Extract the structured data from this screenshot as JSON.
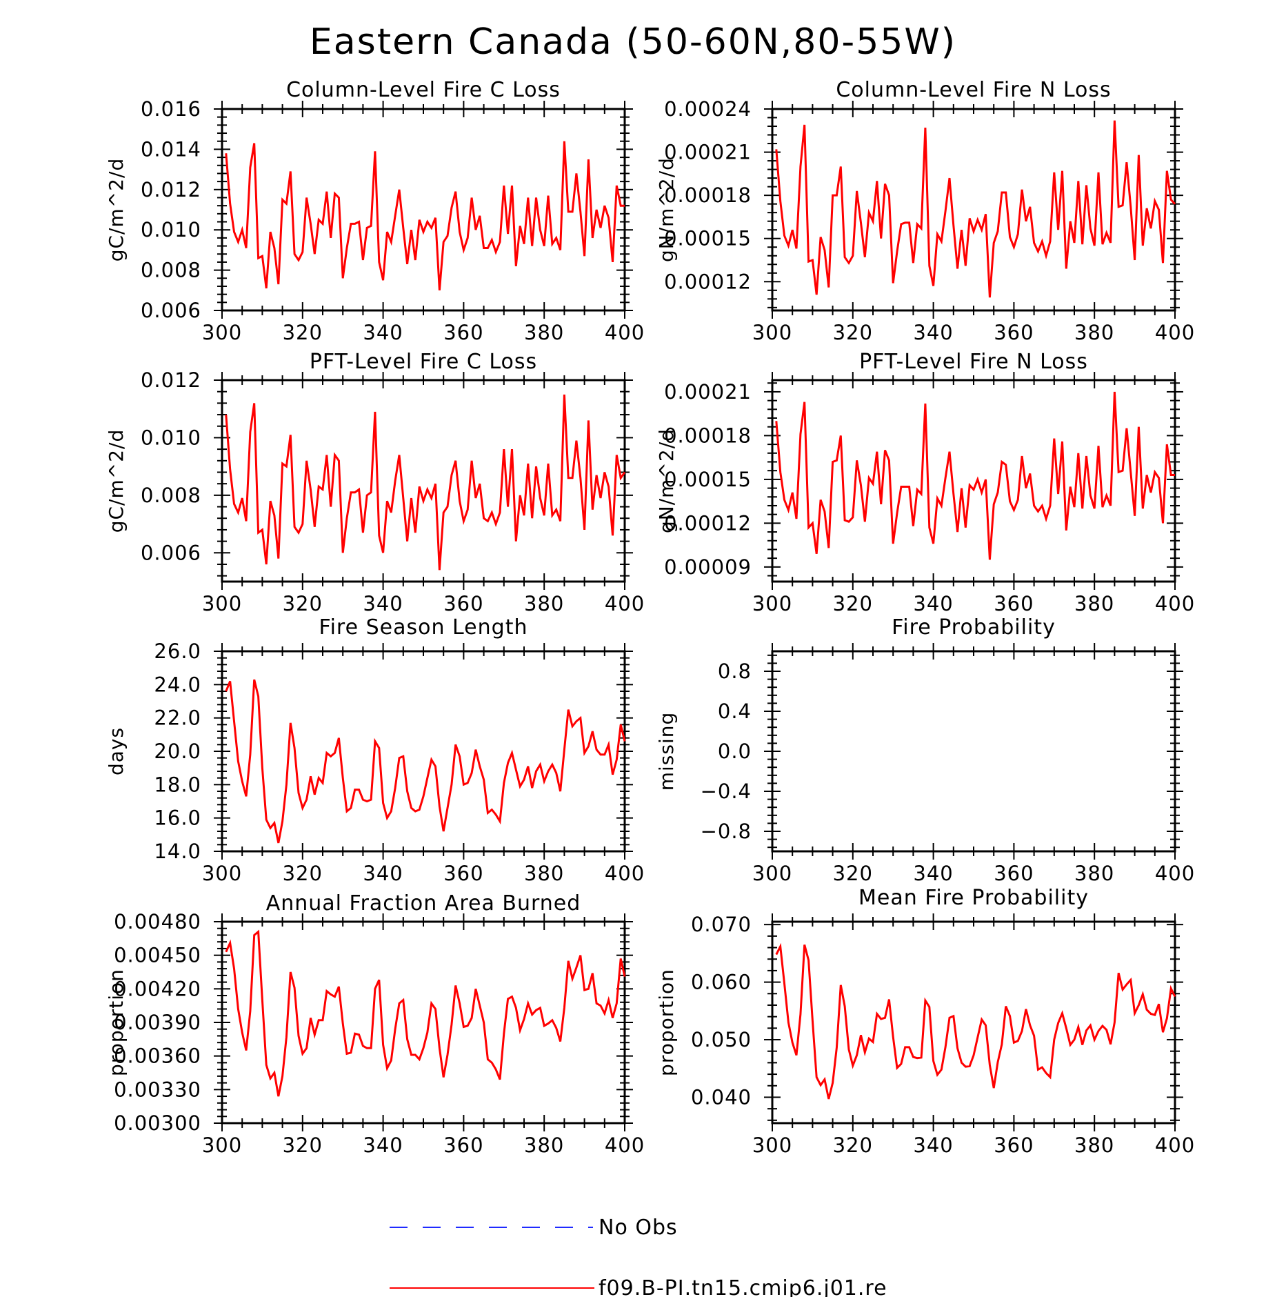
{
  "figure": {
    "title": "Eastern Canada (50-60N,80-55W)",
    "legend": [
      {
        "label": "No Obs",
        "color": "#1f2bff",
        "dash": "dashed"
      },
      {
        "label": "f09.B-PI.tn15.cmip6.j01.re",
        "color": "#ff0000",
        "dash": "solid"
      }
    ]
  },
  "chart_data": [
    {
      "type": "line",
      "title": "Column-Level Fire C Loss",
      "ylabel": "gC/m^2/d",
      "xlabel": "",
      "xlim": [
        300,
        400
      ],
      "ylim": [
        0.006,
        0.016
      ],
      "xticks": [
        "300",
        "320",
        "340",
        "360",
        "380",
        "400"
      ],
      "yticks": [
        "0.006",
        "0.008",
        "0.010",
        "0.012",
        "0.014",
        "0.016"
      ],
      "x_start": 301,
      "color": "#ff0000",
      "values": [
        0.0138,
        0.0113,
        0.0099,
        0.0094,
        0.01,
        0.0091,
        0.0131,
        0.0143,
        0.0086,
        0.0087,
        0.0071,
        0.0099,
        0.0091,
        0.0073,
        0.0115,
        0.0113,
        0.0129,
        0.0088,
        0.0085,
        0.0089,
        0.0116,
        0.0103,
        0.0088,
        0.0105,
        0.0103,
        0.0119,
        0.0096,
        0.0118,
        0.0116,
        0.0076,
        0.0091,
        0.0103,
        0.0103,
        0.0104,
        0.0085,
        0.0101,
        0.0102,
        0.0139,
        0.0084,
        0.0075,
        0.0099,
        0.0094,
        0.0107,
        0.012,
        0.0101,
        0.0083,
        0.01,
        0.0085,
        0.0105,
        0.0099,
        0.0104,
        0.0101,
        0.0106,
        0.007,
        0.0094,
        0.0097,
        0.0111,
        0.0119,
        0.0099,
        0.009,
        0.0096,
        0.0116,
        0.01,
        0.0107,
        0.0091,
        0.0091,
        0.0095,
        0.0089,
        0.0094,
        0.0122,
        0.0098,
        0.0122,
        0.0082,
        0.0102,
        0.0093,
        0.0116,
        0.0092,
        0.0116,
        0.01,
        0.0092,
        0.0117,
        0.0093,
        0.0096,
        0.009,
        0.0144,
        0.0109,
        0.0109,
        0.0128,
        0.0109,
        0.0087,
        0.0135,
        0.0096,
        0.011,
        0.0101,
        0.0112,
        0.0106,
        0.0084,
        0.0122,
        0.0112,
        0.0112
      ]
    },
    {
      "type": "line",
      "title": "Column-Level Fire N Loss",
      "ylabel": "gN/m^2/d",
      "xlabel": "",
      "xlim": [
        300,
        400
      ],
      "ylim": [
        0.0001,
        0.00024
      ],
      "xticks": [
        "300",
        "320",
        "340",
        "360",
        "380",
        "400"
      ],
      "yticks": [
        "0.00012",
        "0.00015",
        "0.00018",
        "0.00021",
        "0.00024"
      ],
      "x_start": 301,
      "color": "#ff0000",
      "values": [
        0.000212,
        0.000176,
        0.000152,
        0.000145,
        0.000156,
        0.000143,
        0.0002,
        0.000229,
        0.000134,
        0.000135,
        0.000111,
        0.000151,
        0.000142,
        0.000116,
        0.00018,
        0.00018,
        0.0002,
        0.000137,
        0.000133,
        0.000138,
        0.000183,
        0.000161,
        0.000137,
        0.000168,
        0.000162,
        0.00019,
        0.00015,
        0.000188,
        0.00018,
        0.000119,
        0.000141,
        0.00016,
        0.000161,
        0.000161,
        0.000133,
        0.00016,
        0.000157,
        0.000227,
        0.000131,
        0.000117,
        0.000153,
        0.000148,
        0.000169,
        0.000192,
        0.000159,
        0.000129,
        0.000156,
        0.000131,
        0.000164,
        0.000155,
        0.000163,
        0.000156,
        0.000167,
        0.000109,
        0.000147,
        0.000155,
        0.000182,
        0.000182,
        0.000151,
        0.000144,
        0.000153,
        0.000184,
        0.000162,
        0.000172,
        0.000147,
        0.000141,
        0.000148,
        0.000138,
        0.000148,
        0.000196,
        0.000156,
        0.000197,
        0.000129,
        0.000162,
        0.000147,
        0.00019,
        0.000146,
        0.000187,
        0.000157,
        0.000145,
        0.000196,
        0.000146,
        0.000154,
        0.000147,
        0.000232,
        0.000172,
        0.000173,
        0.000203,
        0.000172,
        0.000135,
        0.000208,
        0.000145,
        0.000171,
        0.000157,
        0.000176,
        0.00017,
        0.000133,
        0.000197,
        0.000177,
        0.000174
      ]
    },
    {
      "type": "line",
      "title": "PFT-Level Fire C Loss",
      "ylabel": "gC/m^2/d",
      "xlabel": "",
      "xlim": [
        300,
        400
      ],
      "ylim": [
        0.005,
        0.012
      ],
      "xticks": [
        "300",
        "320",
        "340",
        "360",
        "380",
        "400"
      ],
      "yticks": [
        "0.006",
        "0.008",
        "0.010",
        "0.012"
      ],
      "x_start": 301,
      "color": "#ff0000",
      "values": [
        0.0108,
        0.0089,
        0.0077,
        0.0074,
        0.0079,
        0.0071,
        0.0102,
        0.0112,
        0.0067,
        0.0068,
        0.0056,
        0.0078,
        0.0073,
        0.0058,
        0.0091,
        0.009,
        0.0101,
        0.0069,
        0.0067,
        0.007,
        0.0092,
        0.0082,
        0.0069,
        0.0083,
        0.0082,
        0.0094,
        0.0076,
        0.0094,
        0.0092,
        0.006,
        0.0072,
        0.0081,
        0.0081,
        0.0082,
        0.0067,
        0.008,
        0.0081,
        0.0109,
        0.0066,
        0.006,
        0.0078,
        0.0074,
        0.0085,
        0.0094,
        0.0079,
        0.0064,
        0.0079,
        0.0067,
        0.0083,
        0.0078,
        0.0082,
        0.0079,
        0.0084,
        0.0054,
        0.0074,
        0.0076,
        0.0087,
        0.0092,
        0.0078,
        0.0071,
        0.0075,
        0.0092,
        0.0079,
        0.0084,
        0.0072,
        0.0071,
        0.0074,
        0.007,
        0.0074,
        0.0096,
        0.0076,
        0.0096,
        0.0064,
        0.008,
        0.0073,
        0.0091,
        0.0072,
        0.009,
        0.0079,
        0.0073,
        0.0091,
        0.0073,
        0.0075,
        0.0071,
        0.0115,
        0.0086,
        0.0086,
        0.0099,
        0.0086,
        0.0068,
        0.0106,
        0.0075,
        0.0087,
        0.0079,
        0.0088,
        0.0083,
        0.0066,
        0.0094,
        0.0086,
        0.0088
      ]
    },
    {
      "type": "line",
      "title": "PFT-Level Fire N Loss",
      "ylabel": "gN/m^2/d",
      "xlabel": "",
      "xlim": [
        300,
        400
      ],
      "ylim": [
        8e-05,
        0.000218
      ],
      "xticks": [
        "300",
        "320",
        "340",
        "360",
        "380",
        "400"
      ],
      "yticks": [
        "0.00009",
        "0.00012",
        "0.00015",
        "0.00018",
        "0.00021"
      ],
      "x_start": 301,
      "color": "#ff0000",
      "values": [
        0.00019,
        0.000155,
        0.000136,
        0.000129,
        0.000141,
        0.000123,
        0.000181,
        0.000203,
        0.000117,
        0.00012,
        9.9e-05,
        0.000136,
        0.000128,
        0.000103,
        0.000162,
        0.000163,
        0.00018,
        0.000122,
        0.000121,
        0.000124,
        0.000163,
        0.000146,
        0.000121,
        0.000151,
        0.000147,
        0.000169,
        0.000133,
        0.00017,
        0.000163,
        0.000106,
        0.000127,
        0.000145,
        0.000145,
        0.000145,
        0.000118,
        0.000143,
        0.00014,
        0.000202,
        0.000117,
        0.000106,
        0.000137,
        0.000132,
        0.000151,
        0.000169,
        0.00014,
        0.000114,
        0.000144,
        0.000117,
        0.000146,
        0.000143,
        0.00015,
        0.000141,
        0.00015,
        9.5e-05,
        0.000133,
        0.000141,
        0.000162,
        0.00016,
        0.000135,
        0.000129,
        0.000136,
        0.000166,
        0.000144,
        0.000154,
        0.000132,
        0.000128,
        0.000132,
        0.000123,
        0.000132,
        0.000178,
        0.00014,
        0.000176,
        0.000115,
        0.000145,
        0.000131,
        0.000168,
        0.00013,
        0.000166,
        0.000139,
        0.00013,
        0.000173,
        0.000131,
        0.000139,
        0.000132,
        0.00021,
        0.000155,
        0.000156,
        0.000185,
        0.000155,
        0.000125,
        0.000186,
        0.00013,
        0.000153,
        0.000141,
        0.000155,
        0.000151,
        0.00012,
        0.000174,
        0.000153,
        0.000153
      ]
    },
    {
      "type": "line",
      "title": "Fire Season Length",
      "ylabel": "days",
      "xlabel": "",
      "xlim": [
        300,
        400
      ],
      "ylim": [
        14.0,
        26.0
      ],
      "xticks": [
        "300",
        "320",
        "340",
        "360",
        "380",
        "400"
      ],
      "yticks": [
        "14.0",
        "16.0",
        "18.0",
        "20.0",
        "22.0",
        "24.0",
        "26.0"
      ],
      "x_start": 301,
      "color": "#ff0000",
      "values": [
        23.6,
        24.2,
        21.8,
        19.4,
        18.2,
        17.3,
        19.8,
        24.3,
        23.3,
        19.0,
        15.9,
        15.4,
        15.7,
        14.5,
        15.8,
        18.0,
        21.7,
        20.2,
        17.5,
        16.6,
        17.1,
        18.5,
        17.4,
        18.4,
        18.1,
        19.9,
        19.7,
        19.9,
        20.8,
        18.4,
        16.4,
        16.6,
        17.7,
        17.7,
        17.1,
        17.0,
        17.1,
        20.6,
        20.2,
        16.9,
        16.0,
        16.4,
        17.8,
        19.6,
        19.7,
        17.6,
        16.6,
        16.4,
        16.5,
        17.3,
        18.4,
        19.5,
        19.1,
        16.7,
        15.2,
        16.6,
        18.0,
        20.4,
        19.7,
        18.0,
        18.1,
        18.7,
        20.1,
        19.1,
        18.3,
        16.3,
        16.5,
        16.2,
        15.8,
        18.1,
        19.3,
        19.9,
        18.9,
        17.9,
        18.3,
        19.1,
        17.8,
        18.8,
        19.2,
        18.2,
        18.8,
        19.2,
        18.7,
        17.6,
        20.1,
        22.5,
        21.5,
        21.8,
        22.0,
        19.9,
        20.3,
        21.2,
        20.1,
        19.8,
        19.8,
        20.4,
        18.6,
        19.5,
        21.6,
        20.6
      ]
    },
    {
      "type": "line",
      "title": "Fire Probability",
      "ylabel": "missing",
      "xlabel": "",
      "xlim": [
        300,
        400
      ],
      "ylim": [
        -1.0,
        1.0
      ],
      "xticks": [
        "300",
        "320",
        "340",
        "360",
        "380",
        "400"
      ],
      "yticks": [
        "−0.8",
        "−0.4",
        "0.0",
        "0.4",
        "0.8"
      ],
      "x_start": 301,
      "color": "#ff0000",
      "values": []
    },
    {
      "type": "line",
      "title": "Annual Fraction Area Burned",
      "ylabel": "proportion",
      "xlabel": "",
      "xlim": [
        300,
        400
      ],
      "ylim": [
        0.003,
        0.0048
      ],
      "xticks": [
        "300",
        "320",
        "340",
        "360",
        "380",
        "400"
      ],
      "yticks": [
        "0.00300",
        "0.00330",
        "0.00360",
        "0.00390",
        "0.00420",
        "0.00450",
        "0.00480"
      ],
      "x_start": 301,
      "color": "#ff0000",
      "values": [
        0.00453,
        0.00461,
        0.00438,
        0.00402,
        0.00381,
        0.00365,
        0.004,
        0.00468,
        0.00471,
        0.0041,
        0.00352,
        0.0034,
        0.00345,
        0.00324,
        0.00342,
        0.00377,
        0.00435,
        0.00421,
        0.00378,
        0.00362,
        0.00367,
        0.00394,
        0.00379,
        0.00392,
        0.00392,
        0.00418,
        0.00415,
        0.00413,
        0.00422,
        0.00389,
        0.00362,
        0.00363,
        0.0038,
        0.00379,
        0.00369,
        0.00367,
        0.00367,
        0.0042,
        0.00428,
        0.0037,
        0.00349,
        0.00356,
        0.00384,
        0.00407,
        0.0041,
        0.00375,
        0.00361,
        0.00361,
        0.00357,
        0.00367,
        0.00381,
        0.00407,
        0.00402,
        0.00367,
        0.00341,
        0.00361,
        0.00388,
        0.00423,
        0.00407,
        0.00386,
        0.00387,
        0.00394,
        0.0042,
        0.00405,
        0.0039,
        0.00357,
        0.00354,
        0.00348,
        0.00339,
        0.0038,
        0.00411,
        0.00413,
        0.00403,
        0.00383,
        0.00393,
        0.00407,
        0.00397,
        0.00401,
        0.00403,
        0.00387,
        0.00389,
        0.00392,
        0.00385,
        0.00373,
        0.00403,
        0.00445,
        0.00429,
        0.00439,
        0.0045,
        0.00419,
        0.0042,
        0.00434,
        0.00407,
        0.00405,
        0.00398,
        0.0041,
        0.00394,
        0.00407,
        0.00447,
        0.00431
      ]
    },
    {
      "type": "line",
      "title": "Mean Fire Probability",
      "ylabel": "proportion",
      "xlabel": "",
      "xlim": [
        300,
        400
      ],
      "ylim": [
        0.0355,
        0.0705
      ],
      "xticks": [
        "300",
        "320",
        "340",
        "360",
        "380",
        "400"
      ],
      "yticks": [
        "0.040",
        "0.050",
        "0.060",
        "0.070"
      ],
      "x_start": 301,
      "color": "#ff0000",
      "values": [
        0.0648,
        0.0662,
        0.0598,
        0.053,
        0.0495,
        0.0473,
        0.0544,
        0.0665,
        0.0638,
        0.0533,
        0.0435,
        0.0421,
        0.0431,
        0.0397,
        0.0425,
        0.0486,
        0.0595,
        0.0558,
        0.0483,
        0.0455,
        0.0473,
        0.0508,
        0.0478,
        0.0502,
        0.0496,
        0.0545,
        0.0536,
        0.0538,
        0.057,
        0.0505,
        0.0451,
        0.0458,
        0.0487,
        0.0487,
        0.047,
        0.0468,
        0.0469,
        0.0568,
        0.0557,
        0.0463,
        0.0439,
        0.0448,
        0.0487,
        0.0538,
        0.0541,
        0.0485,
        0.046,
        0.0453,
        0.0454,
        0.0473,
        0.0504,
        0.0535,
        0.0525,
        0.0456,
        0.0416,
        0.0461,
        0.0492,
        0.0558,
        0.0541,
        0.0495,
        0.0498,
        0.0515,
        0.0553,
        0.0525,
        0.0507,
        0.0448,
        0.0452,
        0.0442,
        0.0435,
        0.05,
        0.0529,
        0.0546,
        0.052,
        0.0491,
        0.05,
        0.0522,
        0.0491,
        0.0516,
        0.0525,
        0.05,
        0.0515,
        0.0524,
        0.0517,
        0.0492,
        0.053,
        0.0616,
        0.0587,
        0.0596,
        0.0604,
        0.0546,
        0.056,
        0.0579,
        0.0552,
        0.0545,
        0.0543,
        0.0562,
        0.0513,
        0.0537,
        0.0589,
        0.0575
      ]
    }
  ]
}
